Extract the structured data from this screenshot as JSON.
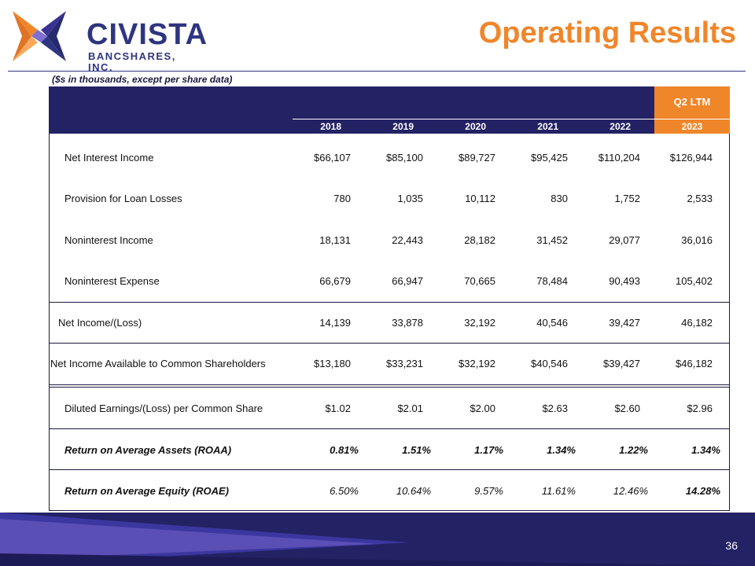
{
  "brand": {
    "name": "CIVISTA",
    "subtitle": "BANCSHARES, INC."
  },
  "title": "Operating Results",
  "units_note": "($s in thousands, except per share data)",
  "table": {
    "ltm_label": "Q2 LTM",
    "years": [
      "2018",
      "2019",
      "2020",
      "2021",
      "2022",
      "2023"
    ],
    "rows": [
      {
        "label": "Net Interest Income",
        "values": [
          "$66,107",
          "$85,100",
          "$89,727",
          "$95,425",
          "$110,204",
          "$126,944"
        ]
      },
      {
        "label": "Provision for Loan Losses",
        "values": [
          "780",
          "1,035",
          "10,112",
          "830",
          "1,752",
          "2,533"
        ]
      },
      {
        "label": "Noninterest Income",
        "values": [
          "18,131",
          "22,443",
          "28,182",
          "31,452",
          "29,077",
          "36,016"
        ]
      },
      {
        "label": "Noninterest Expense",
        "values": [
          "66,679",
          "66,947",
          "70,665",
          "78,484",
          "90,493",
          "105,402"
        ]
      },
      {
        "label": "Net Income/(Loss)",
        "values": [
          "14,139",
          "33,878",
          "32,192",
          "40,546",
          "39,427",
          "46,182"
        ]
      },
      {
        "label": "Net Income Available to Common Shareholders",
        "values": [
          "$13,180",
          "$33,231",
          "$32,192",
          "$40,546",
          "$39,427",
          "$46,182"
        ]
      },
      {
        "label": "Diluted Earnings/(Loss) per Common Share",
        "values": [
          "$1.02",
          "$2.01",
          "$2.00",
          "$2.63",
          "$2.60",
          "$2.96"
        ]
      },
      {
        "label": "Return on Average Assets (ROAA)",
        "values": [
          "0.81%",
          "1.51%",
          "1.17%",
          "1.34%",
          "1.22%",
          "1.34%"
        ]
      },
      {
        "label": "Return on Average Equity (ROAE)",
        "values": [
          "6.50%",
          "10.64%",
          "9.57%",
          "11.61%",
          "12.46%",
          "14.28%"
        ]
      }
    ]
  },
  "page_number": "36",
  "colors": {
    "navy": "#232264",
    "orange": "#f0862a",
    "purple": "#5a4fb5"
  }
}
